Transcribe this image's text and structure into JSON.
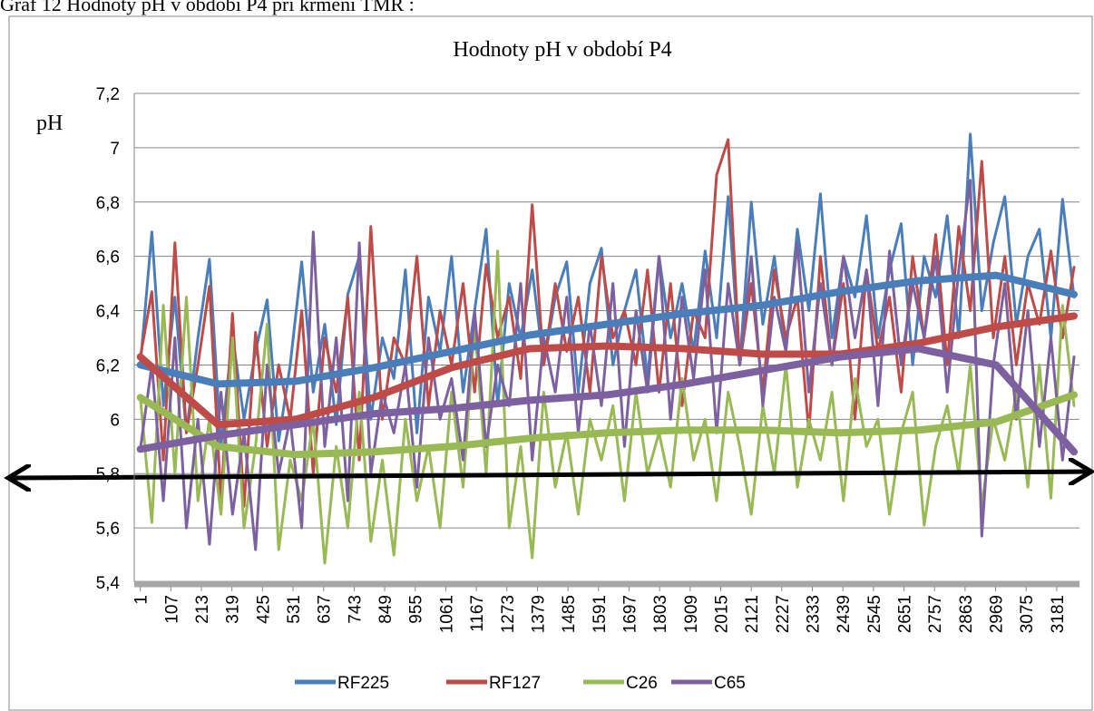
{
  "chart_data": {
    "type": "line",
    "caption": "Graf 12 Hodnoty pH v období P4 při krmení TMR :",
    "title": "Hodnoty pH v období P4",
    "y_label": "pH",
    "x": [
      1,
      41,
      81,
      121,
      161,
      201,
      241,
      281,
      321,
      361,
      401,
      441,
      481,
      521,
      561,
      601,
      641,
      681,
      721,
      761,
      801,
      841,
      881,
      921,
      961,
      1001,
      1041,
      1081,
      1121,
      1161,
      1201,
      1241,
      1281,
      1321,
      1361,
      1401,
      1441,
      1481,
      1521,
      1561,
      1601,
      1641,
      1681,
      1721,
      1761,
      1801,
      1841,
      1881,
      1921,
      1961,
      2001,
      2041,
      2081,
      2121,
      2161,
      2201,
      2241,
      2281,
      2321,
      2361,
      2401,
      2441,
      2481,
      2521,
      2561,
      2601,
      2641,
      2681,
      2721,
      2761,
      2801,
      2841,
      2881,
      2921,
      2961,
      3001,
      3041,
      3081,
      3121,
      3161,
      3201,
      3241
    ],
    "trend_x": [
      1,
      271,
      541,
      811,
      1081,
      1351,
      1621,
      1891,
      2161,
      2431,
      2701,
      2971,
      3241
    ],
    "series": [
      {
        "name": "RF225",
        "color": "#4a7ebb",
        "values": [
          6.2,
          6.69,
          6.05,
          6.45,
          5.95,
          6.3,
          6.59,
          5.9,
          6.31,
          6.0,
          6.25,
          6.44,
          5.92,
          6.2,
          6.58,
          6.1,
          6.35,
          5.98,
          6.46,
          6.6,
          6.0,
          6.3,
          6.15,
          6.55,
          5.95,
          6.45,
          6.25,
          6.6,
          6.1,
          6.4,
          6.7,
          6.05,
          6.5,
          6.3,
          6.55,
          6.2,
          6.45,
          6.58,
          6.1,
          6.5,
          6.63,
          6.2,
          6.4,
          6.55,
          6.15,
          6.6,
          6.3,
          6.5,
          6.25,
          6.62,
          6.3,
          6.82,
          6.2,
          6.8,
          6.35,
          6.6,
          6.25,
          6.7,
          6.4,
          6.83,
          6.3,
          6.6,
          6.45,
          6.75,
          6.3,
          6.55,
          6.72,
          6.2,
          6.6,
          6.45,
          6.75,
          6.3,
          7.05,
          6.4,
          6.65,
          6.82,
          6.35,
          6.6,
          6.7,
          6.3,
          6.81,
          6.45
        ],
        "trend": [
          6.2,
          6.13,
          6.14,
          6.19,
          6.25,
          6.31,
          6.35,
          6.39,
          6.42,
          6.47,
          6.51,
          6.53,
          6.46
        ]
      },
      {
        "name": "RF127",
        "color": "#be4b48",
        "values": [
          6.23,
          6.47,
          5.85,
          6.65,
          5.95,
          6.2,
          6.49,
          5.7,
          6.39,
          5.68,
          6.32,
          5.9,
          6.2,
          6.0,
          6.4,
          5.8,
          6.3,
          6.1,
          6.45,
          5.85,
          6.71,
          6.0,
          6.3,
          6.2,
          6.6,
          6.05,
          6.4,
          6.2,
          6.5,
          6.1,
          6.57,
          6.3,
          6.45,
          6.15,
          6.79,
          6.2,
          6.5,
          6.25,
          6.45,
          6.1,
          6.6,
          6.3,
          6.4,
          6.2,
          6.55,
          6.1,
          6.5,
          6.05,
          6.4,
          6.3,
          6.9,
          7.03,
          6.2,
          6.5,
          6.1,
          6.55,
          6.3,
          6.45,
          5.95,
          6.6,
          6.2,
          6.5,
          6.0,
          6.55,
          6.25,
          6.45,
          6.1,
          6.6,
          6.3,
          6.68,
          6.2,
          6.71,
          6.4,
          6.95,
          6.3,
          6.6,
          6.2,
          6.5,
          6.35,
          6.62,
          6.3,
          6.56
        ],
        "trend": [
          6.23,
          5.98,
          6.0,
          6.08,
          6.19,
          6.26,
          6.27,
          6.26,
          6.24,
          6.24,
          6.28,
          6.34,
          6.38
        ]
      },
      {
        "name": "C26",
        "color": "#98b954",
        "values": [
          6.08,
          5.62,
          6.42,
          5.8,
          6.45,
          5.7,
          6.0,
          5.65,
          6.3,
          5.6,
          5.9,
          6.35,
          5.52,
          5.85,
          5.7,
          6.0,
          5.47,
          5.9,
          5.6,
          6.1,
          5.55,
          5.85,
          5.5,
          6.0,
          5.7,
          5.9,
          5.6,
          6.1,
          5.75,
          6.35,
          5.8,
          6.62,
          5.6,
          5.9,
          5.49,
          6.1,
          5.75,
          5.95,
          5.65,
          6.0,
          5.85,
          6.05,
          5.7,
          6.1,
          5.8,
          5.95,
          5.75,
          6.15,
          5.85,
          6.0,
          5.7,
          6.1,
          5.9,
          5.65,
          6.05,
          5.8,
          6.2,
          5.75,
          6.0,
          5.85,
          6.1,
          5.7,
          6.15,
          5.9,
          6.0,
          5.65,
          5.95,
          6.1,
          5.61,
          5.9,
          6.05,
          5.8,
          6.2,
          5.68,
          6.0,
          5.85,
          6.1,
          5.75,
          6.2,
          5.71,
          6.42,
          6.05
        ],
        "trend": [
          6.08,
          5.9,
          5.87,
          5.88,
          5.9,
          5.93,
          5.95,
          5.96,
          5.96,
          5.95,
          5.96,
          5.99,
          6.09
        ]
      },
      {
        "name": "C65",
        "color": "#7d60a0",
        "values": [
          5.89,
          6.2,
          5.7,
          6.3,
          5.6,
          6.0,
          5.54,
          6.1,
          5.65,
          5.95,
          5.52,
          6.2,
          5.8,
          6.0,
          5.6,
          6.69,
          5.9,
          6.3,
          5.7,
          6.65,
          5.8,
          6.1,
          5.95,
          6.2,
          5.75,
          6.3,
          6.0,
          6.15,
          5.85,
          6.4,
          5.9,
          6.2,
          6.05,
          6.5,
          5.85,
          6.3,
          6.1,
          6.45,
          5.95,
          6.35,
          6.05,
          6.5,
          5.9,
          6.4,
          6.1,
          6.6,
          6.0,
          6.45,
          6.15,
          6.55,
          5.95,
          6.5,
          6.2,
          6.6,
          6.05,
          6.45,
          6.25,
          6.65,
          6.1,
          6.5,
          6.2,
          6.6,
          6.3,
          6.55,
          6.05,
          6.62,
          6.2,
          6.5,
          6.3,
          6.6,
          6.1,
          6.55,
          6.88,
          5.57,
          6.2,
          6.5,
          6.0,
          6.4,
          5.9,
          6.3,
          5.85,
          6.23
        ],
        "trend": [
          5.89,
          5.94,
          5.98,
          6.02,
          6.04,
          6.07,
          6.09,
          6.13,
          6.18,
          6.23,
          6.26,
          6.2,
          5.88
        ]
      }
    ],
    "xlim": [
      -20,
      3260
    ],
    "xticks": [
      1,
      107,
      213,
      319,
      425,
      531,
      637,
      743,
      849,
      955,
      1061,
      1167,
      1273,
      1379,
      1485,
      1591,
      1697,
      1803,
      1909,
      2015,
      2121,
      2227,
      2333,
      2439,
      2545,
      2651,
      2757,
      2863,
      2969,
      3075,
      3181
    ],
    "ylim": [
      5.4,
      7.2
    ],
    "yticks": [
      {
        "value": 5.4,
        "label": "5,4"
      },
      {
        "value": 5.6,
        "label": "5,6"
      },
      {
        "value": 5.8,
        "label": "5,8"
      },
      6,
      {
        "value": 6.2,
        "label": "6,2"
      },
      {
        "value": 6.4,
        "label": "6,4"
      },
      {
        "value": 6.6,
        "label": "6,6"
      },
      {
        "value": 6.8,
        "label": "6,8"
      },
      7,
      {
        "value": 7.2,
        "label": "7,2"
      }
    ],
    "grid": true,
    "legend": "bottom"
  }
}
